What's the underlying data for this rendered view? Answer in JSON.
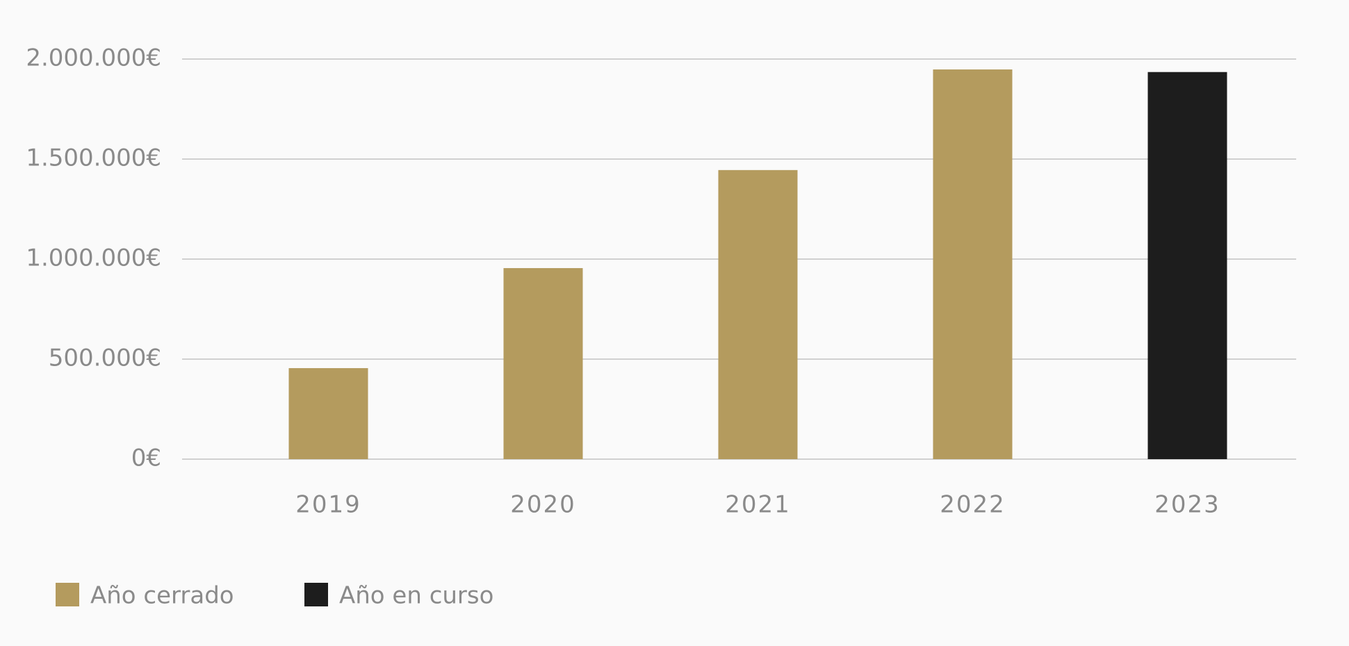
{
  "chart_data": {
    "type": "bar",
    "categories": [
      "2019",
      "2020",
      "2021",
      "2022",
      "2023"
    ],
    "series": [
      {
        "name": "Año cerrado",
        "color": "#b49b5e",
        "values": [
          455000,
          955000,
          1445000,
          1948000,
          null
        ]
      },
      {
        "name": "Año en curso",
        "color": "#1d1d1d",
        "values": [
          null,
          null,
          null,
          null,
          1935000
        ]
      }
    ],
    "ylim": [
      0,
      2000000
    ],
    "yticks": [
      {
        "value": 0,
        "label": "0€"
      },
      {
        "value": 500000,
        "label": "500.000€"
      },
      {
        "value": 1000000,
        "label": "1.000.000€"
      },
      {
        "value": 1500000,
        "label": "1.500.000€"
      },
      {
        "value": 2000000,
        "label": "2.000.000€"
      }
    ],
    "grid": true
  }
}
